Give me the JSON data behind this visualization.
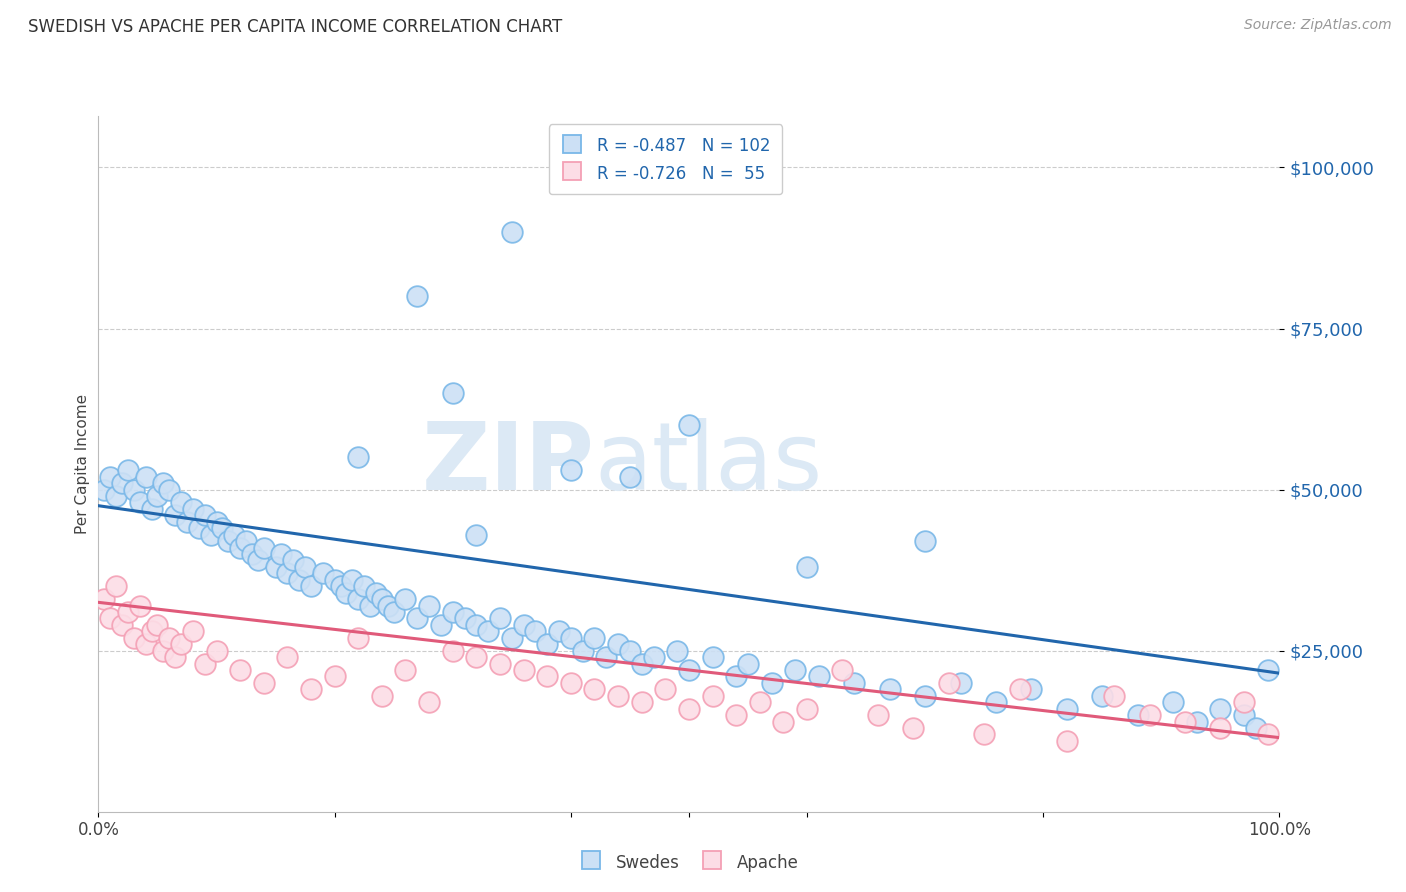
{
  "title": "SWEDISH VS APACHE PER CAPITA INCOME CORRELATION CHART",
  "source": "Source: ZipAtlas.com",
  "ylabel": "Per Capita Income",
  "ytick_labels": [
    "$25,000",
    "$50,000",
    "$75,000",
    "$100,000"
  ],
  "ytick_values": [
    25000,
    50000,
    75000,
    100000
  ],
  "ymin": 0,
  "ymax": 108000,
  "xmin": 0.0,
  "xmax": 1.0,
  "blue_color": "#7ab8e8",
  "blue_line_color": "#2166ac",
  "pink_color": "#f4a0b5",
  "pink_line_color": "#e05a7a",
  "blue_fill": "#cce0f5",
  "pink_fill": "#fcdde6",
  "legend_label_blue": "Swedes",
  "legend_label_pink": "Apache",
  "watermark_zip": "ZIP",
  "watermark_atlas": "atlas",
  "grid_color": "#cccccc",
  "blue_intercept": 47500,
  "blue_slope": -26000,
  "pink_intercept": 32500,
  "pink_slope": -21000,
  "swedes_x": [
    0.005,
    0.01,
    0.015,
    0.02,
    0.025,
    0.03,
    0.035,
    0.04,
    0.045,
    0.05,
    0.055,
    0.06,
    0.065,
    0.07,
    0.075,
    0.08,
    0.085,
    0.09,
    0.095,
    0.1,
    0.105,
    0.11,
    0.115,
    0.12,
    0.125,
    0.13,
    0.135,
    0.14,
    0.15,
    0.155,
    0.16,
    0.165,
    0.17,
    0.175,
    0.18,
    0.19,
    0.2,
    0.205,
    0.21,
    0.215,
    0.22,
    0.225,
    0.23,
    0.235,
    0.24,
    0.245,
    0.25,
    0.26,
    0.27,
    0.28,
    0.29,
    0.3,
    0.31,
    0.32,
    0.33,
    0.34,
    0.35,
    0.36,
    0.37,
    0.38,
    0.39,
    0.4,
    0.41,
    0.42,
    0.43,
    0.44,
    0.45,
    0.46,
    0.47,
    0.49,
    0.5,
    0.52,
    0.54,
    0.55,
    0.57,
    0.59,
    0.61,
    0.64,
    0.67,
    0.7,
    0.73,
    0.76,
    0.79,
    0.82,
    0.85,
    0.88,
    0.91,
    0.93,
    0.95,
    0.97,
    0.98,
    0.99,
    0.35,
    0.27,
    0.3,
    0.22,
    0.4,
    0.45,
    0.32,
    0.6,
    0.5,
    0.7
  ],
  "swedes_y": [
    50000,
    52000,
    49000,
    51000,
    53000,
    50000,
    48000,
    52000,
    47000,
    49000,
    51000,
    50000,
    46000,
    48000,
    45000,
    47000,
    44000,
    46000,
    43000,
    45000,
    44000,
    42000,
    43000,
    41000,
    42000,
    40000,
    39000,
    41000,
    38000,
    40000,
    37000,
    39000,
    36000,
    38000,
    35000,
    37000,
    36000,
    35000,
    34000,
    36000,
    33000,
    35000,
    32000,
    34000,
    33000,
    32000,
    31000,
    33000,
    30000,
    32000,
    29000,
    31000,
    30000,
    29000,
    28000,
    30000,
    27000,
    29000,
    28000,
    26000,
    28000,
    27000,
    25000,
    27000,
    24000,
    26000,
    25000,
    23000,
    24000,
    25000,
    22000,
    24000,
    21000,
    23000,
    20000,
    22000,
    21000,
    20000,
    19000,
    18000,
    20000,
    17000,
    19000,
    16000,
    18000,
    15000,
    17000,
    14000,
    16000,
    15000,
    13000,
    22000,
    90000,
    80000,
    65000,
    55000,
    53000,
    52000,
    43000,
    38000,
    60000,
    42000
  ],
  "apache_x": [
    0.005,
    0.01,
    0.015,
    0.02,
    0.025,
    0.03,
    0.035,
    0.04,
    0.045,
    0.05,
    0.055,
    0.06,
    0.065,
    0.07,
    0.08,
    0.09,
    0.1,
    0.12,
    0.14,
    0.16,
    0.18,
    0.2,
    0.22,
    0.24,
    0.26,
    0.28,
    0.3,
    0.32,
    0.34,
    0.36,
    0.38,
    0.4,
    0.42,
    0.44,
    0.46,
    0.48,
    0.5,
    0.52,
    0.54,
    0.56,
    0.58,
    0.6,
    0.63,
    0.66,
    0.69,
    0.72,
    0.75,
    0.78,
    0.82,
    0.86,
    0.89,
    0.92,
    0.95,
    0.97,
    0.99
  ],
  "apache_y": [
    33000,
    30000,
    35000,
    29000,
    31000,
    27000,
    32000,
    26000,
    28000,
    29000,
    25000,
    27000,
    24000,
    26000,
    28000,
    23000,
    25000,
    22000,
    20000,
    24000,
    19000,
    21000,
    27000,
    18000,
    22000,
    17000,
    25000,
    24000,
    23000,
    22000,
    21000,
    20000,
    19000,
    18000,
    17000,
    19000,
    16000,
    18000,
    15000,
    17000,
    14000,
    16000,
    22000,
    15000,
    13000,
    20000,
    12000,
    19000,
    11000,
    18000,
    15000,
    14000,
    13000,
    17000,
    12000
  ]
}
